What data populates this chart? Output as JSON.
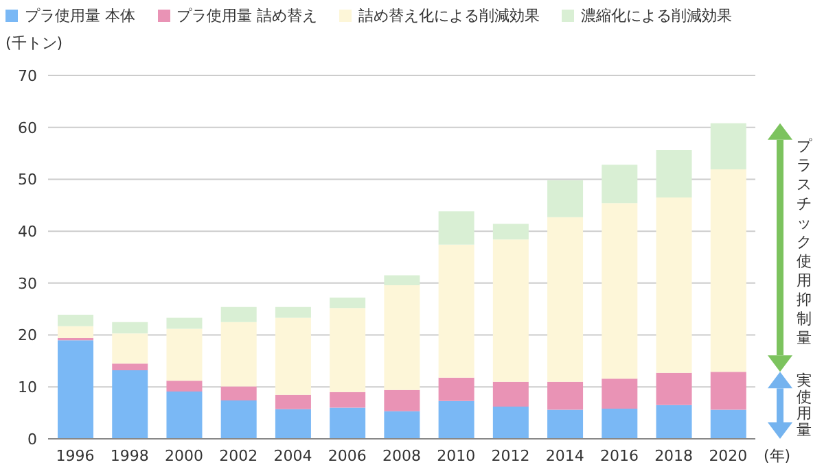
{
  "chart_data": {
    "type": "bar",
    "stacked": true,
    "ylabel": "(千トン)",
    "xlabel": "(年)",
    "categories": [
      "1996",
      "1998",
      "2000",
      "2002",
      "2004",
      "2006",
      "2008",
      "2010",
      "2012",
      "2014",
      "2016",
      "2018",
      "2020"
    ],
    "series": [
      {
        "name": "プラ使用量 本体",
        "color": "#7ab8f5",
        "values": [
          19.0,
          13.2,
          9.1,
          7.4,
          5.7,
          6.0,
          5.3,
          7.3,
          6.2,
          5.6,
          5.8,
          6.5,
          5.6
        ]
      },
      {
        "name": "プラ使用量 詰め替え",
        "color": "#e993b5",
        "values": [
          0.4,
          1.3,
          2.1,
          2.7,
          2.8,
          3.0,
          4.1,
          4.5,
          4.8,
          5.4,
          5.8,
          6.2,
          7.3
        ]
      },
      {
        "name": "詰め替え化による削減効果",
        "color": "#fdf6d8",
        "values": [
          2.3,
          5.8,
          10.0,
          12.4,
          14.8,
          16.2,
          20.2,
          25.6,
          27.4,
          31.7,
          33.8,
          33.8,
          39.0
        ]
      },
      {
        "name": "濃縮化による削減効果",
        "color": "#d9efd4",
        "values": [
          2.2,
          2.2,
          2.1,
          2.9,
          2.1,
          2.0,
          1.9,
          6.4,
          3.0,
          7.1,
          7.4,
          9.1,
          8.9
        ]
      }
    ],
    "ylim": [
      0,
      70
    ],
    "yticks": [
      0,
      10,
      20,
      30,
      40,
      50,
      60,
      70
    ],
    "grid": "y",
    "legend": "top",
    "annotations": [
      "プラスチック使用抑制量",
      "実使用量"
    ]
  }
}
